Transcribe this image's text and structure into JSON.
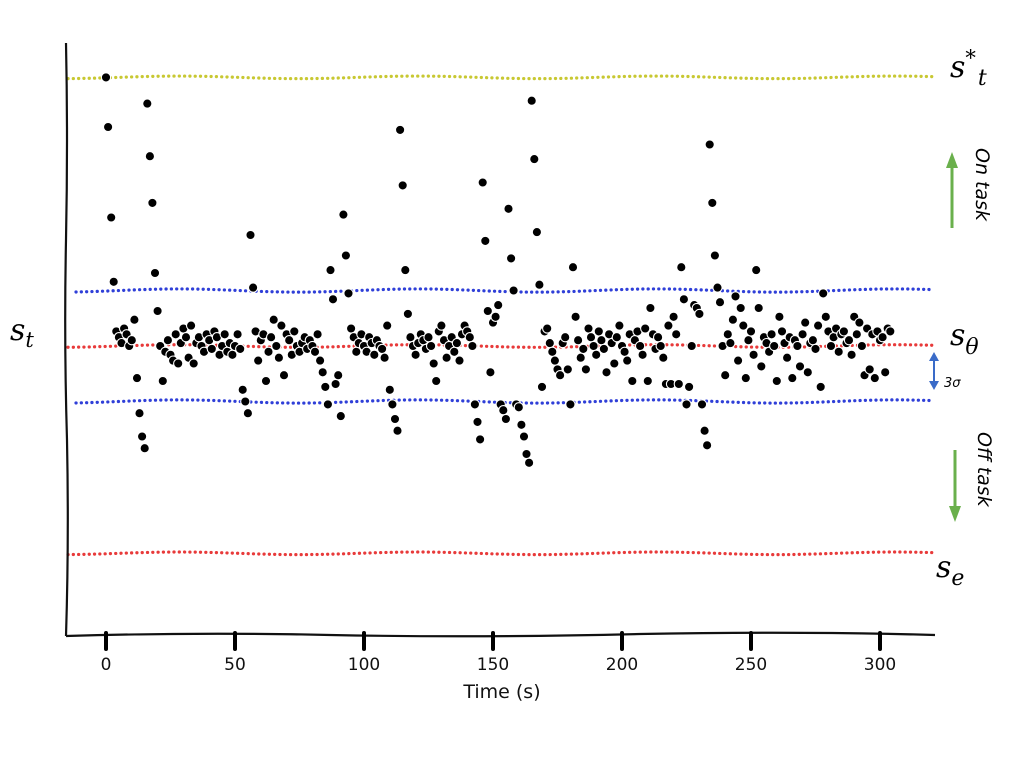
{
  "chart_data": {
    "type": "scatter",
    "title": "",
    "xlabel": "Time (s)",
    "ylabel": "s_t",
    "xlim": [
      -15,
      322
    ],
    "ylim": [
      -1.18,
      1.08
    ],
    "x_ticks": [
      0,
      50,
      100,
      150,
      200,
      250,
      300
    ],
    "grid": false,
    "reference_lines": [
      {
        "label_base": "s",
        "label_sup": "*",
        "label_sub": "t",
        "y": 0.92,
        "color": "#c8c832"
      },
      {
        "label_base": "s",
        "label_sup": "",
        "label_sub": "θ",
        "y": 0.0,
        "color": "#e83a3a"
      },
      {
        "label_base": "s",
        "label_sup": "",
        "label_sub": "e",
        "y": -0.71,
        "color": "#e83a3a"
      }
    ],
    "band_lines": [
      {
        "y": 0.19,
        "color": "#2f3fd8"
      },
      {
        "y": -0.19,
        "color": "#2f3fd8"
      }
    ],
    "sigma_label": "3σ",
    "annotations": {
      "on_task": "On task",
      "off_task": "Off task"
    },
    "arrow_color": "#6ab04c",
    "sigma_arrow_color": "#3a6bc8",
    "points": [
      [
        0,
        0.92
      ],
      [
        0.8,
        0.75
      ],
      [
        2,
        0.44
      ],
      [
        3,
        0.22
      ],
      [
        4,
        0.05
      ],
      [
        5,
        0.03
      ],
      [
        6,
        0.01
      ],
      [
        7,
        0.06
      ],
      [
        8,
        0.04
      ],
      [
        9,
        0.0
      ],
      [
        10,
        0.02
      ],
      [
        11,
        0.09
      ],
      [
        12,
        -0.11
      ],
      [
        13,
        -0.23
      ],
      [
        14,
        -0.31
      ],
      [
        15,
        -0.35
      ],
      [
        16,
        0.83
      ],
      [
        17,
        0.65
      ],
      [
        18,
        0.49
      ],
      [
        19,
        0.25
      ],
      [
        20,
        0.12
      ],
      [
        21,
        0.0
      ],
      [
        22,
        -0.12
      ],
      [
        23,
        -0.02
      ],
      [
        24,
        0.02
      ],
      [
        25,
        -0.03
      ],
      [
        26,
        -0.05
      ],
      [
        27,
        0.04
      ],
      [
        28,
        -0.06
      ],
      [
        29,
        0.01
      ],
      [
        30,
        0.06
      ],
      [
        31,
        0.03
      ],
      [
        32,
        -0.04
      ],
      [
        33,
        0.07
      ],
      [
        34,
        -0.06
      ],
      [
        35,
        0.01
      ],
      [
        36,
        0.03
      ],
      [
        37,
        0.0
      ],
      [
        38,
        -0.02
      ],
      [
        39,
        0.04
      ],
      [
        40,
        0.02
      ],
      [
        41,
        -0.01
      ],
      [
        42,
        0.05
      ],
      [
        43,
        0.03
      ],
      [
        44,
        -0.03
      ],
      [
        45,
        0.0
      ],
      [
        46,
        0.04
      ],
      [
        47,
        -0.02
      ],
      [
        48,
        0.01
      ],
      [
        49,
        -0.03
      ],
      [
        50,
        0.0
      ],
      [
        51,
        0.04
      ],
      [
        52,
        -0.01
      ],
      [
        53,
        -0.15
      ],
      [
        54,
        -0.19
      ],
      [
        55,
        -0.23
      ],
      [
        56,
        0.38
      ],
      [
        57,
        0.2
      ],
      [
        58,
        0.05
      ],
      [
        59,
        -0.05
      ],
      [
        60,
        0.02
      ],
      [
        61,
        0.04
      ],
      [
        62,
        -0.12
      ],
      [
        63,
        -0.02
      ],
      [
        64,
        0.03
      ],
      [
        65,
        0.09
      ],
      [
        66,
        0.0
      ],
      [
        67,
        -0.04
      ],
      [
        68,
        0.07
      ],
      [
        69,
        -0.1
      ],
      [
        70,
        0.04
      ],
      [
        71,
        0.02
      ],
      [
        72,
        -0.03
      ],
      [
        73,
        0.05
      ],
      [
        74,
        0.0
      ],
      [
        75,
        -0.02
      ],
      [
        76,
        0.01
      ],
      [
        77,
        0.03
      ],
      [
        78,
        -0.01
      ],
      [
        79,
        0.02
      ],
      [
        80,
        0.0
      ],
      [
        81,
        -0.02
      ],
      [
        82,
        0.04
      ],
      [
        83,
        -0.05
      ],
      [
        84,
        -0.09
      ],
      [
        85,
        -0.14
      ],
      [
        86,
        -0.2
      ],
      [
        87,
        0.26
      ],
      [
        88,
        0.16
      ],
      [
        89,
        -0.13
      ],
      [
        90,
        -0.1
      ],
      [
        91,
        -0.24
      ],
      [
        92,
        0.45
      ],
      [
        93,
        0.31
      ],
      [
        94,
        0.18
      ],
      [
        95,
        0.06
      ],
      [
        96,
        0.03
      ],
      [
        97,
        -0.02
      ],
      [
        98,
        0.01
      ],
      [
        99,
        0.04
      ],
      [
        100,
        0.0
      ],
      [
        101,
        -0.02
      ],
      [
        102,
        0.03
      ],
      [
        103,
        0.01
      ],
      [
        104,
        -0.03
      ],
      [
        105,
        0.02
      ],
      [
        106,
        0.0
      ],
      [
        107,
        -0.01
      ],
      [
        108,
        -0.04
      ],
      [
        109,
        0.07
      ],
      [
        110,
        -0.15
      ],
      [
        111,
        -0.2
      ],
      [
        112,
        -0.25
      ],
      [
        113,
        -0.29
      ],
      [
        114,
        0.74
      ],
      [
        115,
        0.55
      ],
      [
        116,
        0.26
      ],
      [
        117,
        0.11
      ],
      [
        118,
        0.03
      ],
      [
        119,
        0.0
      ],
      [
        120,
        -0.03
      ],
      [
        121,
        0.01
      ],
      [
        122,
        0.04
      ],
      [
        123,
        0.02
      ],
      [
        124,
        -0.01
      ],
      [
        125,
        0.03
      ],
      [
        126,
        0.0
      ],
      [
        127,
        -0.06
      ],
      [
        128,
        -0.12
      ],
      [
        129,
        0.05
      ],
      [
        130,
        0.07
      ],
      [
        131,
        0.02
      ],
      [
        132,
        -0.04
      ],
      [
        133,
        0.0
      ],
      [
        134,
        0.03
      ],
      [
        135,
        -0.02
      ],
      [
        136,
        0.01
      ],
      [
        137,
        -0.05
      ],
      [
        138,
        0.04
      ],
      [
        139,
        0.07
      ],
      [
        140,
        0.05
      ],
      [
        141,
        0.03
      ],
      [
        142,
        0.0
      ],
      [
        143,
        -0.2
      ],
      [
        144,
        -0.26
      ],
      [
        145,
        -0.32
      ],
      [
        146,
        0.56
      ],
      [
        147,
        0.36
      ],
      [
        148,
        0.12
      ],
      [
        149,
        -0.09
      ],
      [
        150,
        0.08
      ],
      [
        151,
        0.1
      ],
      [
        152,
        0.14
      ],
      [
        153,
        -0.2
      ],
      [
        154,
        -0.22
      ],
      [
        155,
        -0.25
      ],
      [
        156,
        0.47
      ],
      [
        157,
        0.3
      ],
      [
        158,
        0.19
      ],
      [
        159,
        -0.2
      ],
      [
        160,
        -0.21
      ],
      [
        161,
        -0.27
      ],
      [
        162,
        -0.31
      ],
      [
        163,
        -0.37
      ],
      [
        164,
        -0.4
      ],
      [
        165,
        0.84
      ],
      [
        166,
        0.64
      ],
      [
        167,
        0.39
      ],
      [
        168,
        0.21
      ],
      [
        169,
        -0.14
      ],
      [
        170,
        0.05
      ],
      [
        171,
        0.06
      ],
      [
        172,
        0.01
      ],
      [
        173,
        -0.02
      ],
      [
        174,
        -0.05
      ],
      [
        175,
        -0.08
      ],
      [
        176,
        -0.1
      ],
      [
        177,
        0.01
      ],
      [
        178,
        0.03
      ],
      [
        179,
        -0.08
      ],
      [
        180,
        -0.2
      ],
      [
        181,
        0.27
      ],
      [
        182,
        0.1
      ],
      [
        183,
        0.02
      ],
      [
        184,
        -0.04
      ],
      [
        185,
        -0.01
      ],
      [
        186,
        -0.08
      ],
      [
        187,
        0.06
      ],
      [
        188,
        0.03
      ],
      [
        189,
        0.0
      ],
      [
        190,
        -0.03
      ],
      [
        191,
        0.05
      ],
      [
        192,
        0.02
      ],
      [
        193,
        -0.01
      ],
      [
        194,
        -0.09
      ],
      [
        195,
        0.04
      ],
      [
        196,
        0.01
      ],
      [
        197,
        -0.06
      ],
      [
        198,
        0.03
      ],
      [
        199,
        0.07
      ],
      [
        200,
        0.0
      ],
      [
        201,
        -0.02
      ],
      [
        202,
        -0.05
      ],
      [
        203,
        0.04
      ],
      [
        204,
        -0.12
      ],
      [
        205,
        0.02
      ],
      [
        206,
        0.05
      ],
      [
        207,
        0.0
      ],
      [
        208,
        -0.03
      ],
      [
        209,
        0.06
      ],
      [
        210,
        -0.12
      ],
      [
        211,
        0.13
      ],
      [
        212,
        0.04
      ],
      [
        213,
        -0.01
      ],
      [
        214,
        0.03
      ],
      [
        215,
        0.0
      ],
      [
        216,
        -0.04
      ],
      [
        217,
        -0.13
      ],
      [
        218,
        0.07
      ],
      [
        219,
        -0.13
      ],
      [
        220,
        0.1
      ],
      [
        221,
        0.04
      ],
      [
        222,
        -0.13
      ],
      [
        223,
        0.27
      ],
      [
        224,
        0.16
      ],
      [
        225,
        -0.2
      ],
      [
        226,
        -0.14
      ],
      [
        227,
        0.0
      ],
      [
        228,
        0.14
      ],
      [
        229,
        0.13
      ],
      [
        230,
        0.11
      ],
      [
        231,
        -0.2
      ],
      [
        232,
        -0.29
      ],
      [
        233,
        -0.34
      ],
      [
        234,
        0.69
      ],
      [
        235,
        0.49
      ],
      [
        236,
        0.31
      ],
      [
        237,
        0.2
      ],
      [
        238,
        0.15
      ],
      [
        239,
        0.0
      ],
      [
        240,
        -0.1
      ],
      [
        241,
        0.04
      ],
      [
        242,
        0.01
      ],
      [
        243,
        0.09
      ],
      [
        244,
        0.17
      ],
      [
        245,
        -0.05
      ],
      [
        246,
        0.13
      ],
      [
        247,
        0.07
      ],
      [
        248,
        -0.11
      ],
      [
        249,
        0.02
      ],
      [
        250,
        0.05
      ],
      [
        251,
        -0.03
      ],
      [
        252,
        0.26
      ],
      [
        253,
        0.13
      ],
      [
        254,
        -0.07
      ],
      [
        255,
        0.03
      ],
      [
        256,
        0.01
      ],
      [
        257,
        -0.02
      ],
      [
        258,
        0.04
      ],
      [
        259,
        0.0
      ],
      [
        260,
        -0.12
      ],
      [
        261,
        0.1
      ],
      [
        262,
        0.05
      ],
      [
        263,
        0.01
      ],
      [
        264,
        -0.04
      ],
      [
        265,
        0.03
      ],
      [
        266,
        -0.11
      ],
      [
        267,
        0.02
      ],
      [
        268,
        0.0
      ],
      [
        269,
        -0.07
      ],
      [
        270,
        0.04
      ],
      [
        271,
        0.08
      ],
      [
        272,
        -0.09
      ],
      [
        273,
        0.01
      ],
      [
        274,
        0.02
      ],
      [
        275,
        -0.01
      ],
      [
        276,
        0.07
      ],
      [
        277,
        -0.14
      ],
      [
        278,
        0.18
      ],
      [
        279,
        0.1
      ],
      [
        280,
        0.05
      ],
      [
        281,
        0.0
      ],
      [
        282,
        0.03
      ],
      [
        283,
        0.06
      ],
      [
        284,
        -0.02
      ],
      [
        285,
        0.04
      ],
      [
        286,
        0.05
      ],
      [
        287,
        0.01
      ],
      [
        288,
        0.02
      ],
      [
        289,
        -0.03
      ],
      [
        290,
        0.1
      ],
      [
        291,
        0.04
      ],
      [
        292,
        0.08
      ],
      [
        293,
        0.0
      ],
      [
        294,
        -0.1
      ],
      [
        295,
        0.06
      ],
      [
        296,
        -0.08
      ],
      [
        297,
        0.04
      ],
      [
        298,
        -0.11
      ],
      [
        299,
        0.05
      ],
      [
        300,
        0.02
      ],
      [
        301,
        0.03
      ],
      [
        302,
        -0.09
      ],
      [
        303,
        0.06
      ],
      [
        304,
        0.05
      ]
    ]
  }
}
